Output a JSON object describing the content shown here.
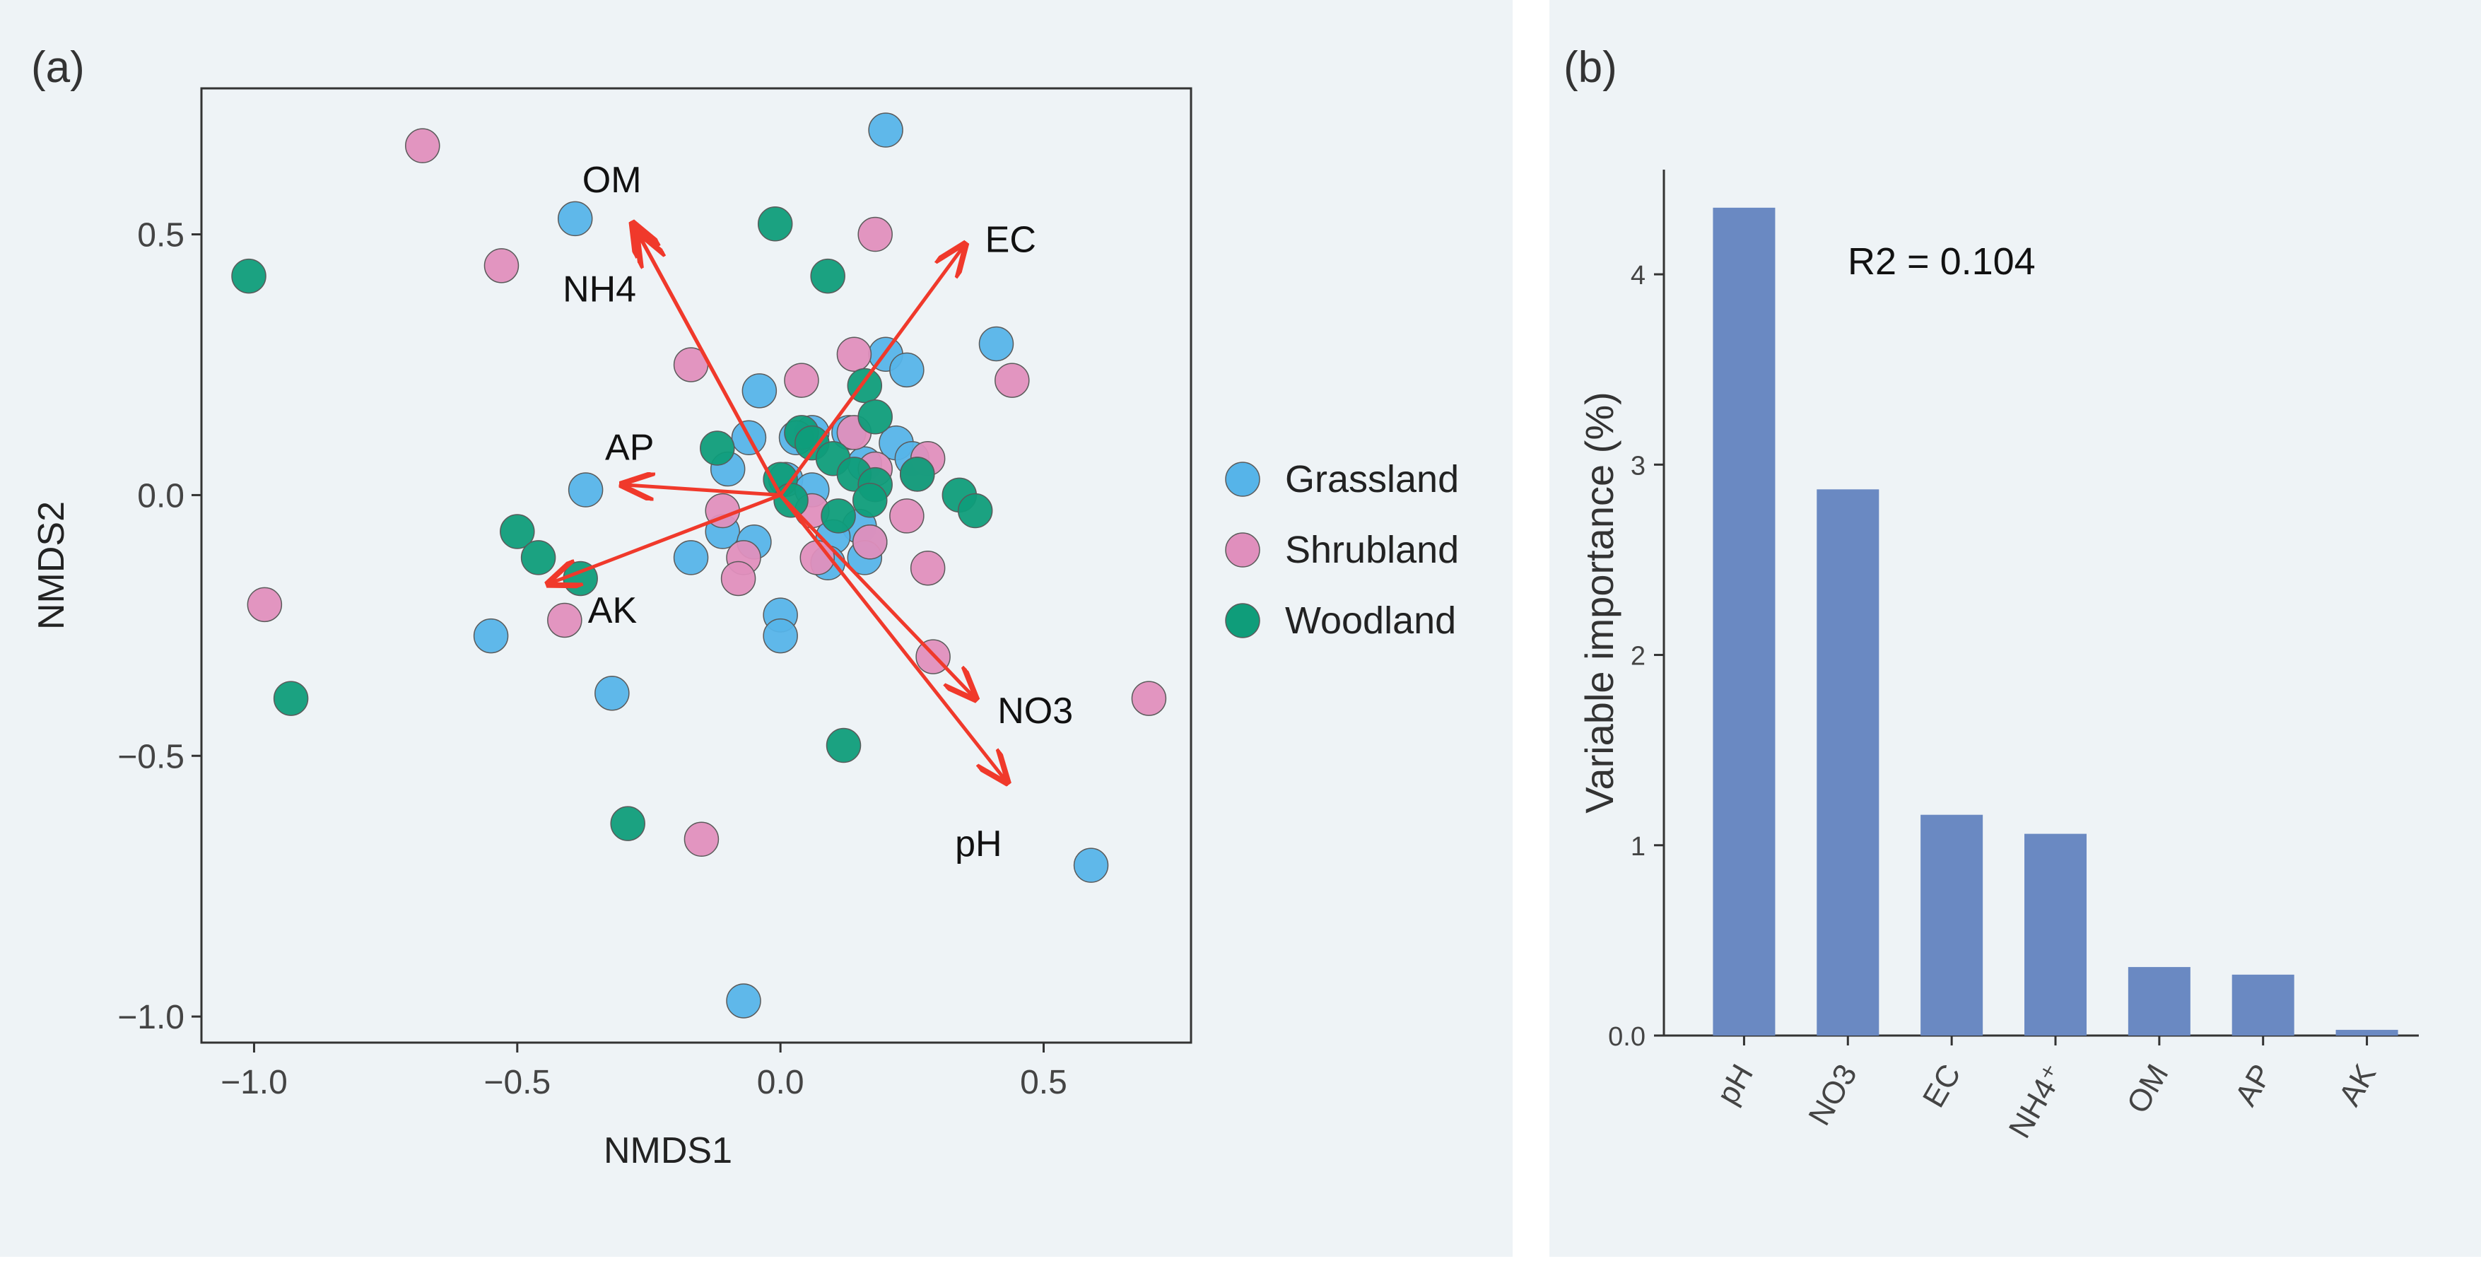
{
  "panel_a": {
    "label": "(a)",
    "legend": [
      {
        "name": "Grassland",
        "color": "#56b4e9"
      },
      {
        "name": "Shrubland",
        "color": "#e08fbd"
      },
      {
        "name": "Woodland",
        "color": "#0f9d7a"
      }
    ],
    "arrow_color": "#f0392b"
  },
  "panel_b": {
    "label": "(b)",
    "annotation": "R2 = 0.104",
    "bar_color": "#6a89c2"
  },
  "chart_data": [
    {
      "type": "scatter",
      "title": "",
      "xlabel": "NMDS1",
      "ylabel": "NMDS2",
      "xlim": [
        -1.1,
        0.78
      ],
      "ylim": [
        -1.05,
        0.78
      ],
      "xticks": [
        -1.0,
        -0.5,
        0.0,
        0.5
      ],
      "xtick_labels": [
        "−1.0",
        "−0.5",
        "0.0",
        "0.5"
      ],
      "yticks": [
        -1.0,
        -0.5,
        0.0,
        0.5
      ],
      "ytick_labels": [
        "−1.0",
        "−0.5",
        "0.0",
        "0.5"
      ],
      "series": [
        {
          "name": "Grassland",
          "color": "#56b4e9",
          "points": [
            [
              0.2,
              0.7
            ],
            [
              -0.39,
              0.53
            ],
            [
              0.41,
              0.29
            ],
            [
              -0.04,
              0.2
            ],
            [
              0.06,
              0.12
            ],
            [
              0.13,
              0.12
            ],
            [
              0.2,
              0.27
            ],
            [
              0.24,
              0.24
            ],
            [
              -0.06,
              0.11
            ],
            [
              0.03,
              0.11
            ],
            [
              0.16,
              0.06
            ],
            [
              0.22,
              0.1
            ],
            [
              0.25,
              0.07
            ],
            [
              -0.1,
              0.05
            ],
            [
              -0.37,
              0.01
            ],
            [
              0.01,
              0.03
            ],
            [
              0.06,
              0.01
            ],
            [
              0.15,
              -0.06
            ],
            [
              -0.11,
              -0.07
            ],
            [
              -0.05,
              -0.09
            ],
            [
              0.1,
              -0.08
            ],
            [
              0.17,
              -0.09
            ],
            [
              -0.17,
              -0.12
            ],
            [
              0.09,
              -0.13
            ],
            [
              0.16,
              -0.12
            ],
            [
              0.0,
              -0.23
            ],
            [
              0.0,
              -0.27
            ],
            [
              -0.55,
              -0.27
            ],
            [
              -0.32,
              -0.38
            ],
            [
              0.59,
              -0.71
            ],
            [
              -0.07,
              -0.97
            ]
          ]
        },
        {
          "name": "Shrubland",
          "color": "#e08fbd",
          "points": [
            [
              -0.68,
              0.67
            ],
            [
              0.18,
              0.5
            ],
            [
              -0.53,
              0.44
            ],
            [
              0.14,
              0.27
            ],
            [
              -0.17,
              0.25
            ],
            [
              0.04,
              0.22
            ],
            [
              0.44,
              0.22
            ],
            [
              0.14,
              0.12
            ],
            [
              0.28,
              0.07
            ],
            [
              0.18,
              0.05
            ],
            [
              0.26,
              0.04
            ],
            [
              -0.11,
              -0.03
            ],
            [
              0.06,
              -0.03
            ],
            [
              0.24,
              -0.04
            ],
            [
              -0.07,
              -0.12
            ],
            [
              0.07,
              -0.12
            ],
            [
              0.17,
              -0.09
            ],
            [
              -0.08,
              -0.16
            ],
            [
              0.28,
              -0.14
            ],
            [
              -0.98,
              -0.21
            ],
            [
              -0.41,
              -0.24
            ],
            [
              0.29,
              -0.31
            ],
            [
              0.7,
              -0.39
            ],
            [
              -0.15,
              -0.66
            ]
          ]
        },
        {
          "name": "Woodland",
          "color": "#0f9d7a",
          "points": [
            [
              -1.01,
              0.42
            ],
            [
              -0.01,
              0.52
            ],
            [
              0.09,
              0.42
            ],
            [
              0.16,
              0.21
            ],
            [
              0.18,
              0.15
            ],
            [
              0.04,
              0.12
            ],
            [
              0.06,
              0.1
            ],
            [
              -0.12,
              0.09
            ],
            [
              0.1,
              0.07
            ],
            [
              0.14,
              0.04
            ],
            [
              0.18,
              0.02
            ],
            [
              0.26,
              0.04
            ],
            [
              0.34,
              0.0
            ],
            [
              0.37,
              -0.03
            ],
            [
              0.0,
              0.03
            ],
            [
              0.02,
              -0.01
            ],
            [
              0.11,
              -0.04
            ],
            [
              0.17,
              -0.01
            ],
            [
              -0.5,
              -0.07
            ],
            [
              -0.46,
              -0.12
            ],
            [
              -0.38,
              -0.16
            ],
            [
              -0.93,
              -0.39
            ],
            [
              0.12,
              -0.48
            ],
            [
              -0.29,
              -0.63
            ]
          ]
        }
      ],
      "vectors": [
        {
          "name": "OM",
          "x": -0.28,
          "y": 0.52
        },
        {
          "name": "NH4",
          "x": -0.27,
          "y": 0.5
        },
        {
          "name": "EC",
          "x": 0.35,
          "y": 0.48
        },
        {
          "name": "AP",
          "x": -0.3,
          "y": 0.02
        },
        {
          "name": "AK",
          "x": -0.44,
          "y": -0.17
        },
        {
          "name": "NO3",
          "x": 0.37,
          "y": -0.39
        },
        {
          "name": "pH",
          "x": 0.43,
          "y": -0.55
        }
      ]
    },
    {
      "type": "bar",
      "title": "",
      "xlabel": "",
      "ylabel": "Variable importance (%)",
      "ylim": [
        0,
        4.55
      ],
      "yticks": [
        0,
        1,
        2,
        3,
        4
      ],
      "ytick_labels": [
        "0.0",
        "1",
        "2",
        "3",
        "4"
      ],
      "categories": [
        "pH",
        "NO3",
        "EC",
        "NH4⁺",
        "OM",
        "AP",
        "AK"
      ],
      "values": [
        4.35,
        2.87,
        1.16,
        1.06,
        0.36,
        0.32,
        0.03
      ]
    }
  ]
}
